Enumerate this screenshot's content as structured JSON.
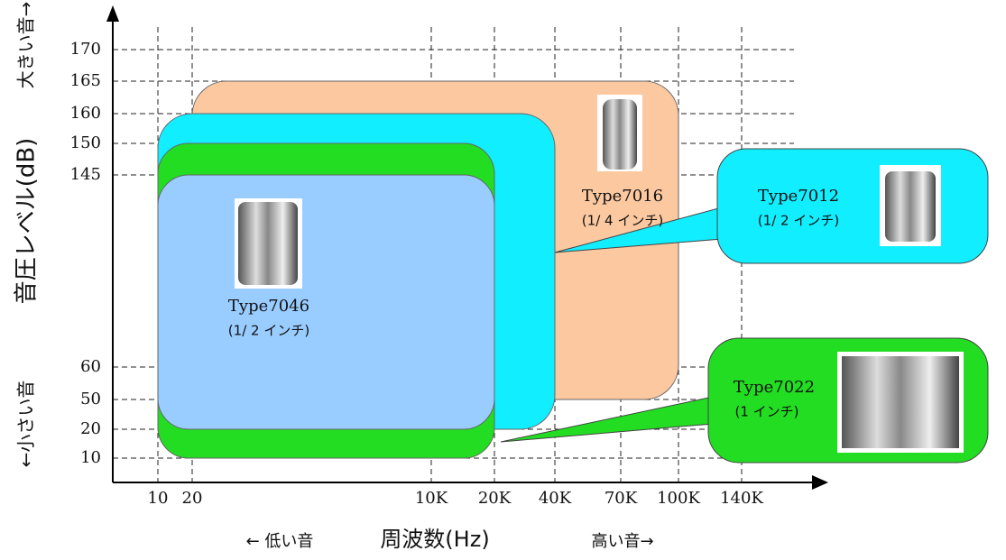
{
  "y_axis": {
    "ticks": [
      "170",
      "165",
      "160",
      "150",
      "145",
      "60",
      "50",
      "20",
      "10"
    ],
    "label": "音圧レベル(dB)",
    "high_note": "大きい音→",
    "low_note": "←小さい音"
  },
  "x_axis": {
    "ticks": [
      "10",
      "20",
      "10K",
      "20K",
      "40K",
      "70K",
      "100K",
      "140K"
    ],
    "label": "周波数(Hz)",
    "low_note": "←  低い音",
    "high_note": "高い音→"
  },
  "microphones": [
    {
      "name": "Type7016",
      "size": "(1/ 4 インチ)"
    },
    {
      "name": "Type7012",
      "size": "(1/ 2 インチ)"
    },
    {
      "name": "Type7046",
      "size": "(1/ 2 インチ)"
    },
    {
      "name": "Type7022",
      "size": "(1 インチ)"
    }
  ]
}
